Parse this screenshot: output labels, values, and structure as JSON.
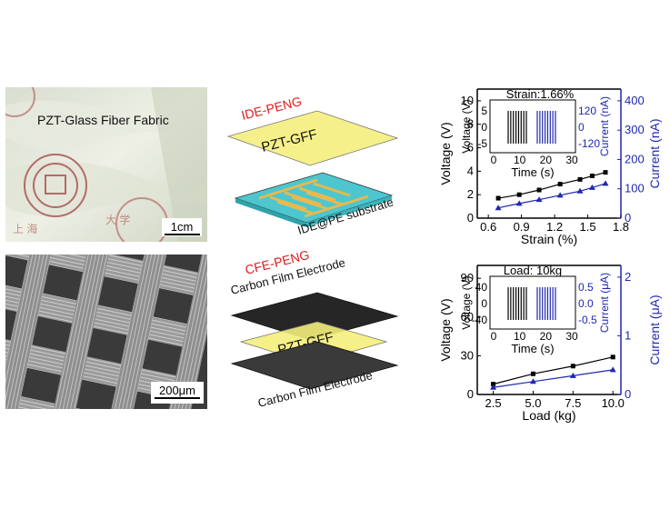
{
  "photo_top": {
    "label": "PZT-Glass Fiber Fabric",
    "scale_bar": "1cm"
  },
  "photo_bottom": {
    "scale_bar": "200μm"
  },
  "schematic_top": {
    "title": "IDE-PENG",
    "layer_label": "PZT-GFF",
    "substrate_label": "IDE@PE substrate"
  },
  "schematic_bottom": {
    "title": "CFE-PENG",
    "electrode_top_label": "Carbon Film Electrode",
    "layer_label": "PZT-GFF",
    "electrode_bottom_label": "Carbon Film Electrode"
  },
  "colors": {
    "voltage": "#000000",
    "current": "#1f27b0",
    "title_red": "#e01b1b"
  },
  "chart_data": [
    {
      "type": "line",
      "xlabel": "Strain (%)",
      "ylabel": "Voltage (V)",
      "y2label": "Current (nA)",
      "xticks": [
        "0.6",
        "0.9",
        "1.2",
        "1.5",
        "1.8"
      ],
      "yticks": [
        "0",
        "2",
        "4",
        "6",
        "8",
        "10"
      ],
      "y2ticks": [
        "0",
        "100",
        "200",
        "300",
        "400"
      ],
      "xlim": [
        0.5,
        1.8
      ],
      "ylim": [
        0,
        11
      ],
      "y2lim": [
        0,
        440
      ],
      "series": [
        {
          "axis": "left",
          "x": [
            0.69,
            0.88,
            1.06,
            1.25,
            1.43,
            1.54,
            1.66
          ],
          "values": [
            1.7,
            2.0,
            2.4,
            2.9,
            3.3,
            3.6,
            3.9
          ]
        },
        {
          "axis": "right",
          "x": [
            0.69,
            0.88,
            1.06,
            1.25,
            1.43,
            1.54,
            1.66
          ],
          "values": [
            35,
            50,
            63,
            78,
            92,
            104,
            118
          ]
        }
      ],
      "inset": {
        "title": "Strain:1.66%",
        "xlabel": "Time (s)",
        "ylabel": "Voltage (V)",
        "y2label": "Current (nA)",
        "xticks": [
          "0",
          "10",
          "20",
          "30"
        ],
        "yticks": [
          "-5",
          "0",
          "5"
        ],
        "y2ticks": [
          "-120",
          "0",
          "120"
        ]
      }
    },
    {
      "type": "line",
      "xlabel": "Load (kg)",
      "ylabel": "Voltage (V)",
      "y2label": "Current (μA)",
      "xticks": [
        "2.5",
        "5.0",
        "7.5",
        "10.0"
      ],
      "yticks": [
        "0",
        "30",
        "60",
        "90"
      ],
      "y2ticks": [
        "0",
        "1",
        "2"
      ],
      "xlim": [
        1.5,
        10.5
      ],
      "ylim": [
        0,
        100
      ],
      "y2lim": [
        0,
        2.2
      ],
      "series": [
        {
          "axis": "left",
          "x": [
            2.5,
            5.0,
            7.5,
            10.0
          ],
          "values": [
            8,
            16,
            22,
            29
          ]
        },
        {
          "axis": "right",
          "x": [
            2.5,
            5.0,
            7.5,
            10.0
          ],
          "values": [
            0.12,
            0.22,
            0.32,
            0.42
          ]
        }
      ],
      "inset": {
        "title": "Load: 10kg",
        "xlabel": "Time (s)",
        "ylabel": "Voltage (V)",
        "y2label": "Current (μA)",
        "xticks": [
          "0",
          "10",
          "20",
          "30"
        ],
        "yticks": [
          "-40",
          "0",
          "40"
        ],
        "y2ticks": [
          "-0.5",
          "0.0",
          "0.5"
        ]
      }
    }
  ]
}
